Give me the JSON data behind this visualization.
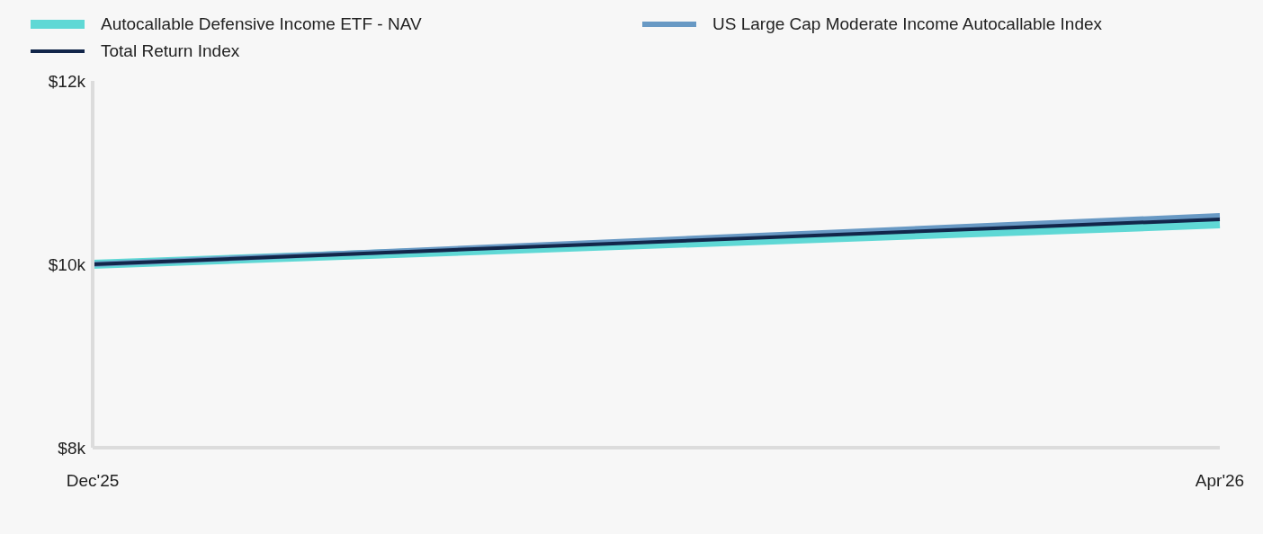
{
  "chart_data": {
    "type": "line",
    "categories": [
      "Dec'25",
      "Apr'26"
    ],
    "series": [
      {
        "name": "Autocallable Defensive Income ETF - NAV",
        "color": "#5fd8d5",
        "values": [
          10000,
          10440
        ]
      },
      {
        "name": "US Large Cap Moderate Income Autocallable Index",
        "color": "#6899c4",
        "values": [
          10000,
          10530
        ]
      },
      {
        "name": "Total Return Index",
        "color": "#12264a",
        "values": [
          10000,
          10490
        ]
      }
    ],
    "ylim": [
      8000,
      12000
    ],
    "yticks": [
      {
        "value": 8000,
        "label": "$8k"
      },
      {
        "value": 10000,
        "label": "$10k"
      },
      {
        "value": 12000,
        "label": "$12k"
      }
    ],
    "grid": false,
    "legend": "top",
    "marker": "none",
    "line_style": "solid"
  }
}
